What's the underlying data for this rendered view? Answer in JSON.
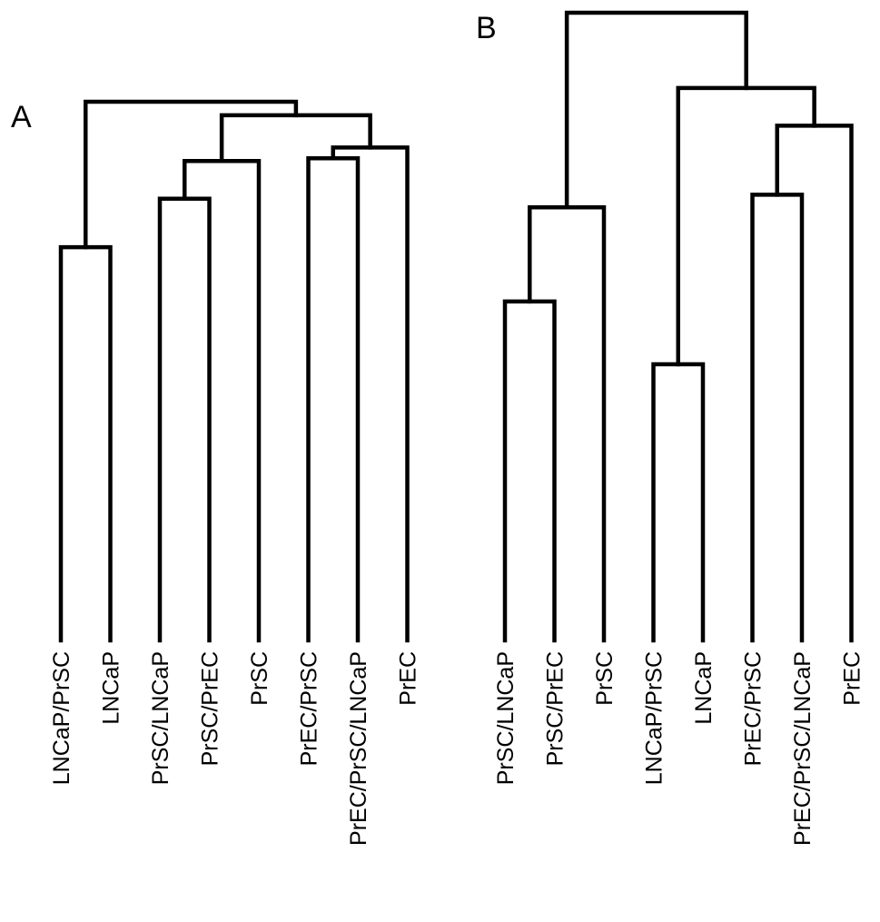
{
  "panels": [
    {
      "label": "A",
      "leaves": [
        "LNCaP/PrSC",
        "LNCaP",
        "PrSC/LNCaP",
        "PrSC/PrEC",
        "PrSC",
        "PrEC/PrSC",
        "PrEC/PrSC/LNCaP",
        "PrEC"
      ],
      "merges": [
        {
          "a": "leaf:0",
          "b": "leaf:1",
          "height": 0.73
        },
        {
          "a": "leaf:2",
          "b": "leaf:3",
          "height": 0.82
        },
        {
          "a": "merge:1",
          "b": "leaf:4",
          "height": 0.89
        },
        {
          "a": "leaf:5",
          "b": "leaf:6",
          "height": 0.895
        },
        {
          "a": "merge:3",
          "b": "leaf:7",
          "height": 0.915
        },
        {
          "a": "merge:2",
          "b": "merge:4",
          "height": 0.975
        },
        {
          "a": "merge:0",
          "b": "merge:5",
          "height": 1.0
        }
      ]
    },
    {
      "label": "B",
      "leaves": [
        "PrSC/LNCaP",
        "PrSC/PrEC",
        "PrSC",
        "LNCaP/PrSC",
        "LNCaP",
        "PrEC/PrSC",
        "PrEC/PrSC/LNCaP",
        "PrEC"
      ],
      "merges": [
        {
          "a": "leaf:0",
          "b": "leaf:1",
          "height": 0.54
        },
        {
          "a": "merge:0",
          "b": "leaf:2",
          "height": 0.69
        },
        {
          "a": "leaf:3",
          "b": "leaf:4",
          "height": 0.44
        },
        {
          "a": "leaf:5",
          "b": "leaf:6",
          "height": 0.71
        },
        {
          "a": "merge:3",
          "b": "leaf:7",
          "height": 0.82
        },
        {
          "a": "merge:2",
          "b": "merge:4",
          "height": 0.88
        },
        {
          "a": "merge:1",
          "b": "merge:5",
          "height": 1.0
        }
      ]
    }
  ]
}
